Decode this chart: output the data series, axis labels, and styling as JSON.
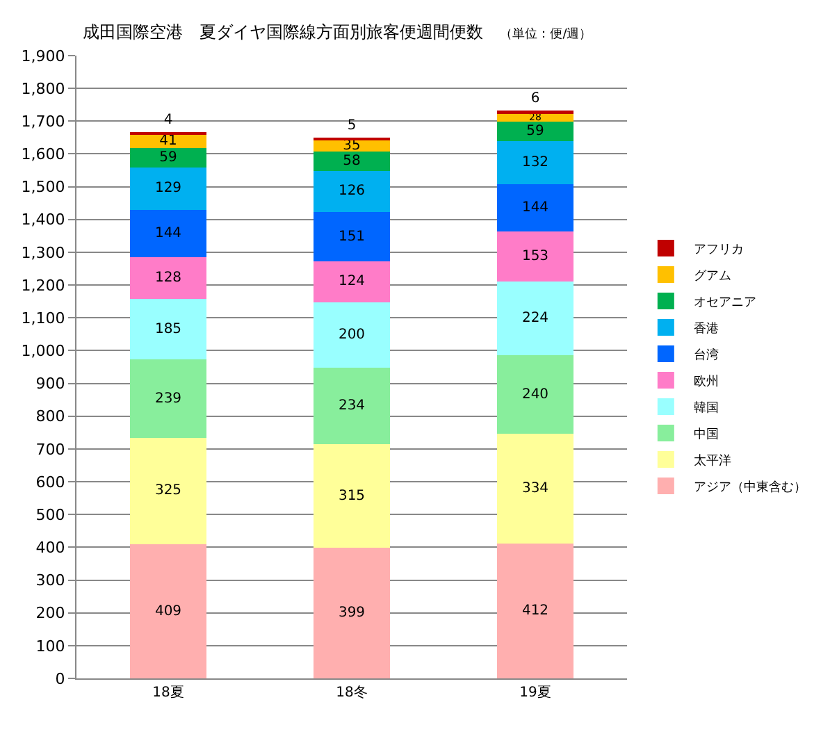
{
  "chart_data": {
    "type": "bar",
    "stacked": true,
    "title": "成田国際空港　夏ダイヤ国際線方面別旅客便週間便数",
    "subtitle": "（単位：便/週）",
    "categories": [
      "18夏",
      "18冬",
      "19夏"
    ],
    "series": [
      {
        "name": "アジア（中東含む）",
        "color": "#ffafaf",
        "values": [
          409,
          399,
          412
        ]
      },
      {
        "name": "太平洋",
        "color": "#ffff99",
        "values": [
          325,
          315,
          334
        ]
      },
      {
        "name": "中国",
        "color": "#88ee9c",
        "values": [
          239,
          234,
          240
        ]
      },
      {
        "name": "韓国",
        "color": "#99ffff",
        "values": [
          185,
          200,
          224
        ]
      },
      {
        "name": "欧州",
        "color": "#ff7cc8",
        "values": [
          128,
          124,
          153
        ]
      },
      {
        "name": "台湾",
        "color": "#0066ff",
        "values": [
          144,
          151,
          144
        ]
      },
      {
        "name": "香港",
        "color": "#00b0f0",
        "values": [
          129,
          126,
          132
        ]
      },
      {
        "name": "オセアニア",
        "color": "#00b050",
        "values": [
          59,
          58,
          59
        ]
      },
      {
        "name": "グアム",
        "color": "#ffc000",
        "values": [
          41,
          35,
          28
        ]
      },
      {
        "name": "アフリカ",
        "color": "#c00000",
        "values": [
          4,
          5,
          6
        ]
      }
    ],
    "ylim": [
      0,
      1900
    ],
    "yticks": [
      0,
      100,
      200,
      300,
      400,
      500,
      600,
      700,
      800,
      900,
      {
        "value": 1000,
        "label": "1,000"
      },
      {
        "value": 1100,
        "label": "1,100"
      },
      {
        "value": 1200,
        "label": "1,200"
      },
      {
        "value": 1300,
        "label": "1,300"
      },
      {
        "value": 1400,
        "label": "1,400"
      },
      {
        "value": 1500,
        "label": "1,500"
      },
      {
        "value": 1600,
        "label": "1,600"
      },
      {
        "value": 1700,
        "label": "1,700"
      },
      {
        "value": 1800,
        "label": "1,800"
      },
      {
        "value": 1900,
        "label": "1,900"
      }
    ],
    "grid": "y",
    "legend": "right",
    "data_labels": true
  }
}
